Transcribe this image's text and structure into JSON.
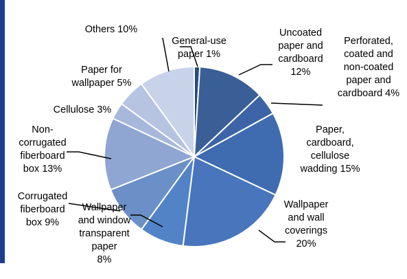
{
  "chart_data": {
    "type": "pie",
    "title": "",
    "slices": [
      {
        "label_lines": [
          "General-use",
          "paper 1%"
        ],
        "value": 1,
        "color": "#2a4a7c"
      },
      {
        "label_lines": [
          "Uncoated",
          "paper and",
          "cardboard",
          "12%"
        ],
        "value": 12,
        "color": "#3a5f96"
      },
      {
        "label_lines": [
          "Perforated,",
          "coated and",
          "non-coated",
          "paper and",
          "cardboard 4%"
        ],
        "value": 4,
        "color": "#3c64a6"
      },
      {
        "label_lines": [
          "Paper,",
          "cardboard,",
          "cellulose",
          "wadding 15%"
        ],
        "value": 15,
        "color": "#3f6cb0"
      },
      {
        "label_lines": [
          "Wallpaper",
          "and wall",
          "coverings",
          "20%"
        ],
        "value": 20,
        "color": "#4975bc"
      },
      {
        "label_lines": [
          "Wallpaper",
          "and window",
          "transparent",
          "paper",
          "8%"
        ],
        "value": 8,
        "color": "#5283c7"
      },
      {
        "label_lines": [
          "Corrugated",
          "fiberboard",
          "box 9%"
        ],
        "value": 9,
        "color": "#6b8fc7"
      },
      {
        "label_lines": [
          "Non-",
          "corrugated",
          "fiberboard",
          "box 13%"
        ],
        "value": 13,
        "color": "#8fa6d2"
      },
      {
        "label_lines": [
          "Cellulose 3%"
        ],
        "value": 3,
        "color": "#a7b8dc"
      },
      {
        "label_lines": [
          "Paper for",
          "wallpaper 5%"
        ],
        "value": 5,
        "color": "#b6c4e2"
      },
      {
        "label_lines": [
          "Others 10%"
        ],
        "value": 10,
        "color": "#c8d3ea"
      }
    ]
  }
}
